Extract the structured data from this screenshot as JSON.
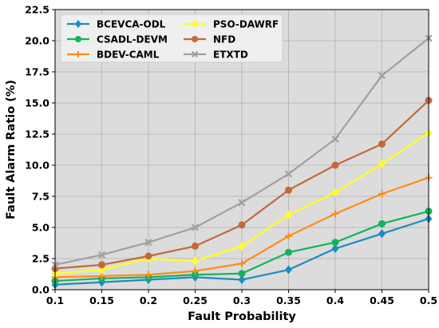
{
  "chart_data": {
    "type": "line",
    "title": "",
    "xlabel": "Fault Probability",
    "ylabel": "Fault Alarm Ratio (%)",
    "x": [
      0.1,
      0.15,
      0.2,
      0.25,
      0.3,
      0.35,
      0.4,
      0.45,
      0.5
    ],
    "x_tick_labels": [
      "0.1",
      "0.15",
      "0.2",
      "0.25",
      "0.3",
      "0.35",
      "0.4",
      "0.45",
      "0.5"
    ],
    "xlim": [
      0.1,
      0.5
    ],
    "ylim": [
      0.0,
      22.5
    ],
    "y_ticks": [
      0.0,
      2.5,
      5.0,
      7.5,
      10.0,
      12.5,
      15.0,
      17.5,
      20.0,
      22.5
    ],
    "y_tick_labels": [
      "0.0",
      "2.5",
      "5.0",
      "7.5",
      "10.0",
      "12.5",
      "15.0",
      "17.5",
      "20.0",
      "22.5"
    ],
    "grid": true,
    "legend_position": "top-left",
    "legend_columns": 2,
    "series": [
      {
        "name": "BCEVCA-ODL",
        "color": "#1f8bc0",
        "marker": "diamond",
        "values": [
          0.4,
          0.6,
          0.8,
          1.0,
          0.8,
          1.6,
          3.3,
          4.5,
          5.7
        ]
      },
      {
        "name": "CSADL-DEVM",
        "color": "#13b35e",
        "marker": "circle",
        "values": [
          0.7,
          0.9,
          1.0,
          1.2,
          1.3,
          3.0,
          3.8,
          5.3,
          6.3
        ]
      },
      {
        "name": "BDEV-CAML",
        "color": "#ff8c1a",
        "marker": "plus",
        "values": [
          1.0,
          1.1,
          1.2,
          1.5,
          2.1,
          4.3,
          6.1,
          7.7,
          9.0
        ]
      },
      {
        "name": "PSO-DAWRF",
        "color": "#ffff22",
        "marker": "diamond",
        "values": [
          1.3,
          1.6,
          2.5,
          2.3,
          3.5,
          6.0,
          7.8,
          10.1,
          12.6
        ]
      },
      {
        "name": "NFD",
        "color": "#c06a3a",
        "marker": "circle",
        "values": [
          1.7,
          2.0,
          2.7,
          3.5,
          5.2,
          8.0,
          10.0,
          11.7,
          15.2
        ]
      },
      {
        "name": "ETXTD",
        "color": "#a0a0a0",
        "marker": "x",
        "values": [
          2.0,
          2.8,
          3.8,
          5.0,
          7.0,
          9.3,
          12.1,
          17.2,
          20.2
        ]
      }
    ]
  }
}
